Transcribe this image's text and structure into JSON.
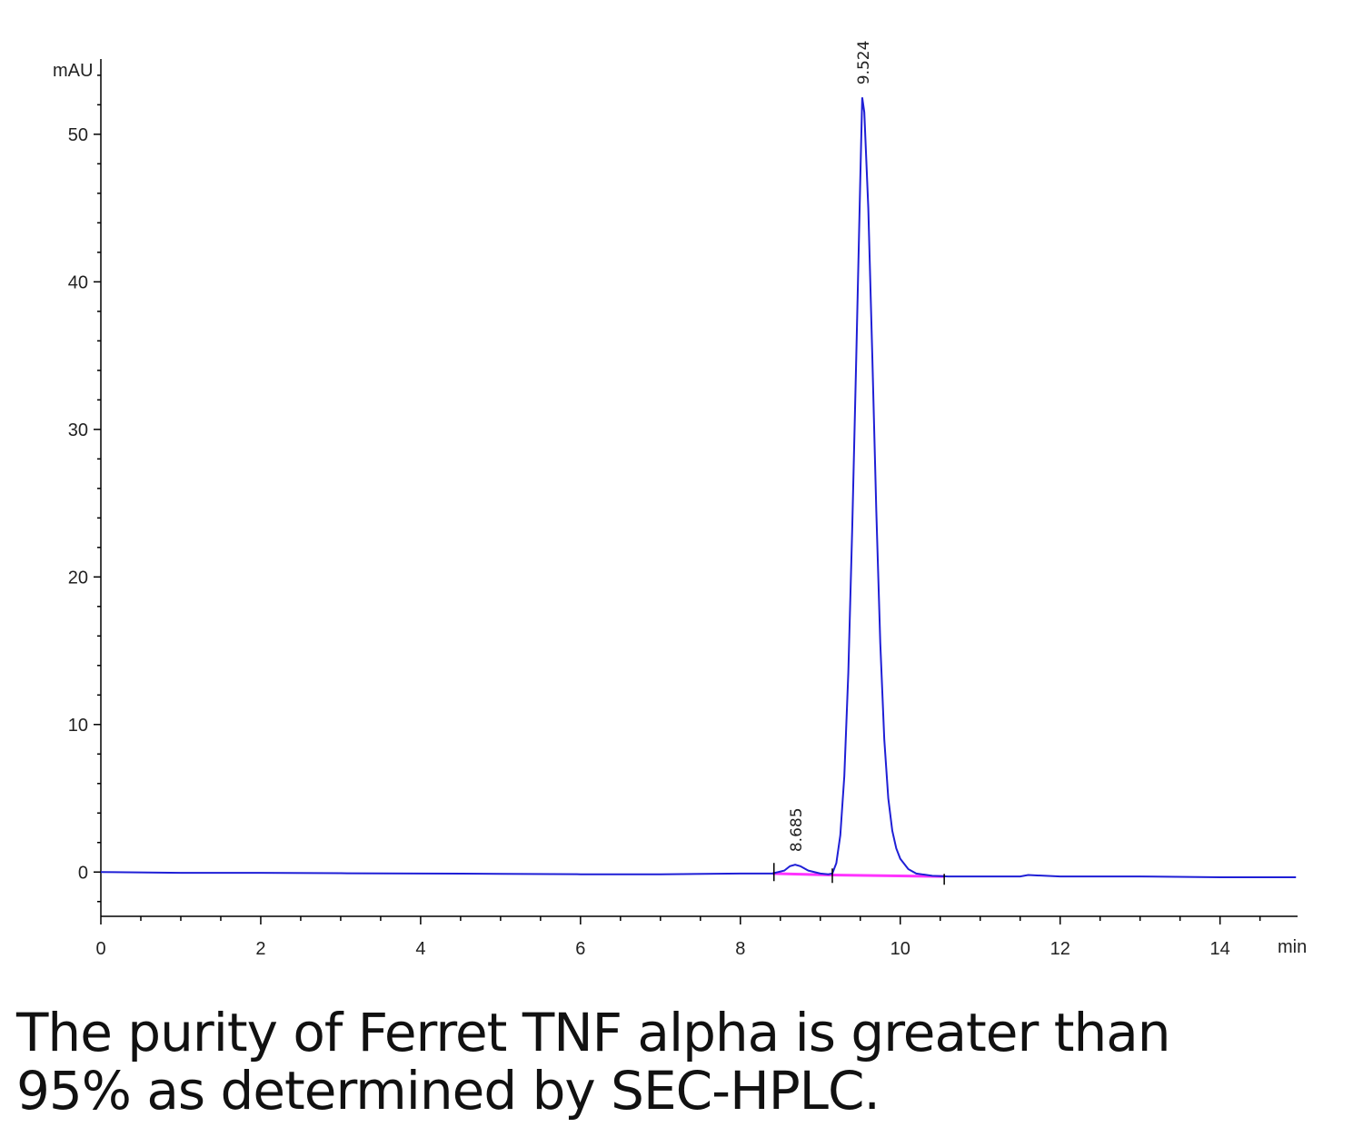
{
  "chart_data": {
    "type": "line",
    "y_unit_label": "mAU",
    "x_unit_label": "min",
    "series": [
      {
        "name": "signal",
        "color": "#1f1fd6",
        "x": [
          0,
          1,
          2,
          3,
          4,
          5,
          6,
          7,
          8,
          8.4,
          8.55,
          8.62,
          8.685,
          8.75,
          8.85,
          9.0,
          9.1,
          9.15,
          9.2,
          9.25,
          9.3,
          9.35,
          9.4,
          9.45,
          9.5,
          9.524,
          9.55,
          9.6,
          9.65,
          9.7,
          9.75,
          9.8,
          9.85,
          9.9,
          9.95,
          10.0,
          10.1,
          10.2,
          10.4,
          10.6,
          11,
          11.5,
          11.6,
          12,
          13,
          14,
          14.95
        ],
        "values": [
          0,
          -0.05,
          -0.05,
          -0.08,
          -0.1,
          -0.12,
          -0.15,
          -0.15,
          -0.1,
          -0.1,
          0.1,
          0.4,
          0.5,
          0.4,
          0.1,
          -0.1,
          -0.15,
          -0.1,
          0.6,
          2.5,
          6.5,
          13.5,
          23.5,
          35,
          47,
          52.5,
          51.5,
          45,
          35,
          24.5,
          15.5,
          9,
          5,
          2.8,
          1.6,
          0.9,
          0.2,
          -0.1,
          -0.25,
          -0.3,
          -0.3,
          -0.3,
          -0.2,
          -0.3,
          -0.3,
          -0.35,
          -0.35
        ]
      },
      {
        "name": "baseline",
        "color": "#ff33ff",
        "x": [
          8.4,
          9.15,
          10.55
        ],
        "values": [
          -0.1,
          -0.2,
          -0.3
        ]
      }
    ],
    "peaks": [
      {
        "time": 8.685,
        "height": 0.5
      },
      {
        "time": 9.524,
        "height": 52.5
      }
    ],
    "integration_marks": [
      8.42,
      9.15,
      10.55
    ],
    "xlim": [
      0,
      14.97
    ],
    "xticks": [
      0,
      2,
      4,
      6,
      8,
      10,
      12,
      14
    ],
    "xminorticks": [
      0.5,
      1,
      1.5,
      2.5,
      3,
      3.5,
      4.5,
      5,
      5.5,
      6.5,
      7,
      7.5,
      8.5,
      9,
      9.5,
      10.5,
      11,
      11.5,
      12.5,
      13,
      13.5,
      14.5
    ],
    "ylim": [
      -3,
      55.1
    ],
    "yticks": [
      0,
      10,
      20,
      30,
      40,
      50
    ],
    "yminorticks": [
      -2,
      2,
      4,
      6,
      8,
      12,
      14,
      16,
      18,
      22,
      24,
      26,
      28,
      32,
      34,
      36,
      38,
      42,
      44,
      46,
      48,
      52,
      54
    ]
  },
  "caption": [
    "The purity of Ferret TNF alpha is greater than",
    "95% as determined by SEC-HPLC."
  ]
}
